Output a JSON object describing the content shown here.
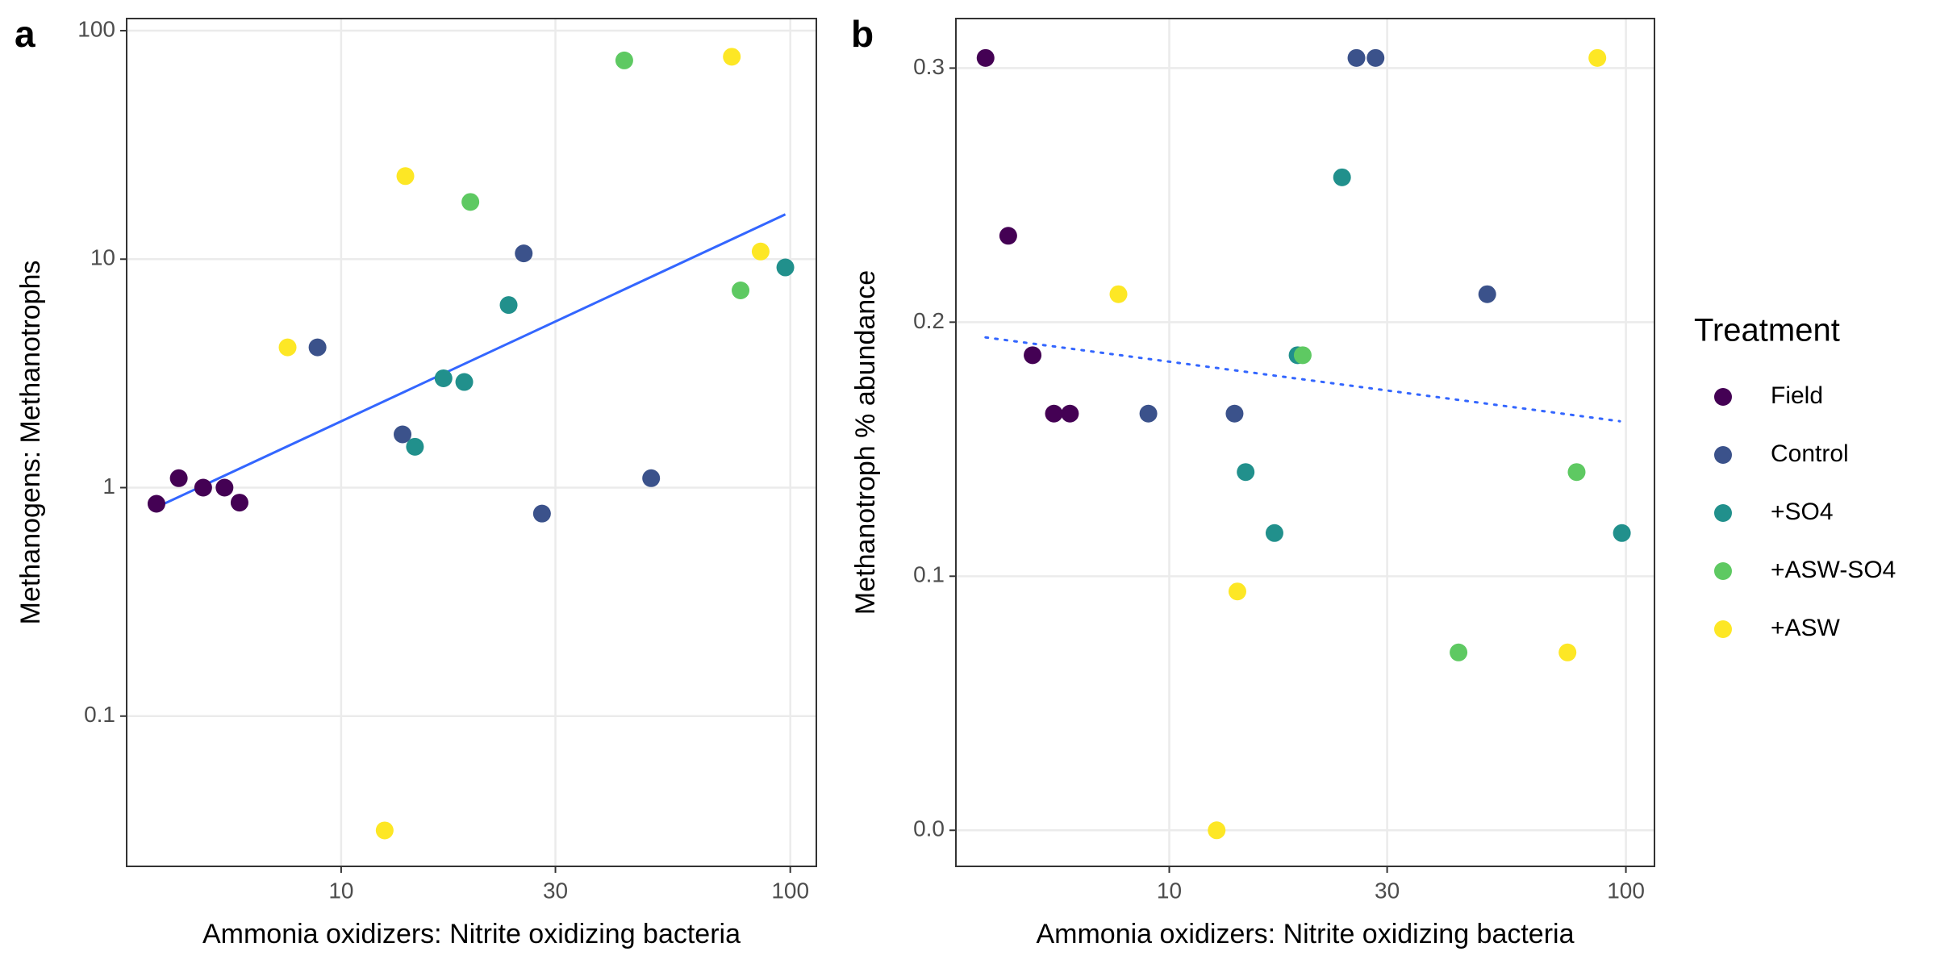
{
  "chart_data": [
    {
      "type": "scatter",
      "panel": "a",
      "x_label": "Ammonia oxidizers: Nitrite oxidizing bacteria",
      "y_label": "Methanogens: Methanotrophs",
      "xlog": true,
      "ylog": true,
      "grid": true,
      "xlim": [
        3.33,
        114.3
      ],
      "ylim": [
        0.022,
        113
      ],
      "xticks": [
        10,
        30,
        100
      ],
      "yticks": [
        0.1,
        1,
        10,
        100
      ],
      "series": [
        {
          "name": "Field",
          "color": "#440154",
          "x": [
            3.88,
            4.35,
            4.93,
            5.5,
            5.94
          ],
          "values": [
            0.85,
            1.1,
            1.0,
            1.0,
            0.86
          ]
        },
        {
          "name": "Control",
          "color": "#3b528b",
          "x": [
            8.86,
            13.7,
            25.5,
            28.0,
            49.0
          ],
          "values": [
            4.11,
            1.71,
            10.6,
            0.77,
            1.1
          ]
        },
        {
          "name": "+SO4",
          "color": "#21908c",
          "x": [
            14.6,
            16.9,
            18.8,
            23.6,
            97.5
          ],
          "values": [
            1.51,
            3.01,
            2.9,
            6.3,
            9.2
          ]
        },
        {
          "name": "+ASW-SO4",
          "color": "#5ec962",
          "x": [
            19.4,
            42.7,
            77.5
          ],
          "values": [
            17.8,
            74.1,
            7.3
          ]
        },
        {
          "name": "+ASW",
          "color": "#fde725",
          "x": [
            7.6,
            12.5,
            13.9,
            74.1,
            85.9
          ],
          "values": [
            4.11,
            0.0316,
            23.1,
            76.9,
            10.8
          ]
        }
      ],
      "fit": {
        "x": [
          3.88,
          97.5
        ],
        "y": [
          0.82,
          15.7
        ],
        "color": "#3366ff",
        "style": "solid"
      }
    },
    {
      "type": "scatter",
      "panel": "b",
      "x_label": "Ammonia oxidizers: Nitrite oxidizing bacteria",
      "y_label": "Methanotroph % abundance",
      "xlog": true,
      "ylog": false,
      "grid": true,
      "xlim": [
        3.41,
        115.5
      ],
      "ylim": [
        -0.0142,
        0.3195
      ],
      "xticks": [
        10,
        30,
        100
      ],
      "yticks": [
        {
          "value": 0,
          "label": "0.0"
        },
        0.1,
        0.2,
        0.3
      ],
      "series": [
        {
          "name": "Field",
          "color": "#440154",
          "x": [
            3.96,
            4.44,
            5.02,
            5.59,
            6.06
          ],
          "values": [
            0.304,
            0.234,
            0.187,
            0.164,
            0.164
          ]
        },
        {
          "name": "Control",
          "color": "#3b528b",
          "x": [
            9.0,
            13.9,
            25.7,
            28.3,
            49.7
          ],
          "values": [
            0.164,
            0.164,
            0.304,
            0.304,
            0.211
          ]
        },
        {
          "name": "+SO4",
          "color": "#21908c",
          "x": [
            14.7,
            17.0,
            19.1,
            23.9,
            98
          ],
          "values": [
            0.141,
            0.117,
            0.187,
            0.257,
            0.117
          ]
        },
        {
          "name": "+ASW-SO4",
          "color": "#5ec962",
          "x": [
            19.6,
            43.0,
            78.0
          ],
          "values": [
            0.187,
            0.07,
            0.141
          ]
        },
        {
          "name": "+ASW",
          "color": "#fde725",
          "x": [
            7.74,
            12.7,
            14.1,
            74.5,
            86.6
          ],
          "values": [
            0.211,
            0.0,
            0.094,
            0.07,
            0.304
          ]
        }
      ],
      "fit": {
        "x": [
          3.96,
          97
        ],
        "y": [
          0.194,
          0.161
        ],
        "color": "#3366ff",
        "style": "dotted"
      },
      "legend_title": "Treatment"
    }
  ]
}
